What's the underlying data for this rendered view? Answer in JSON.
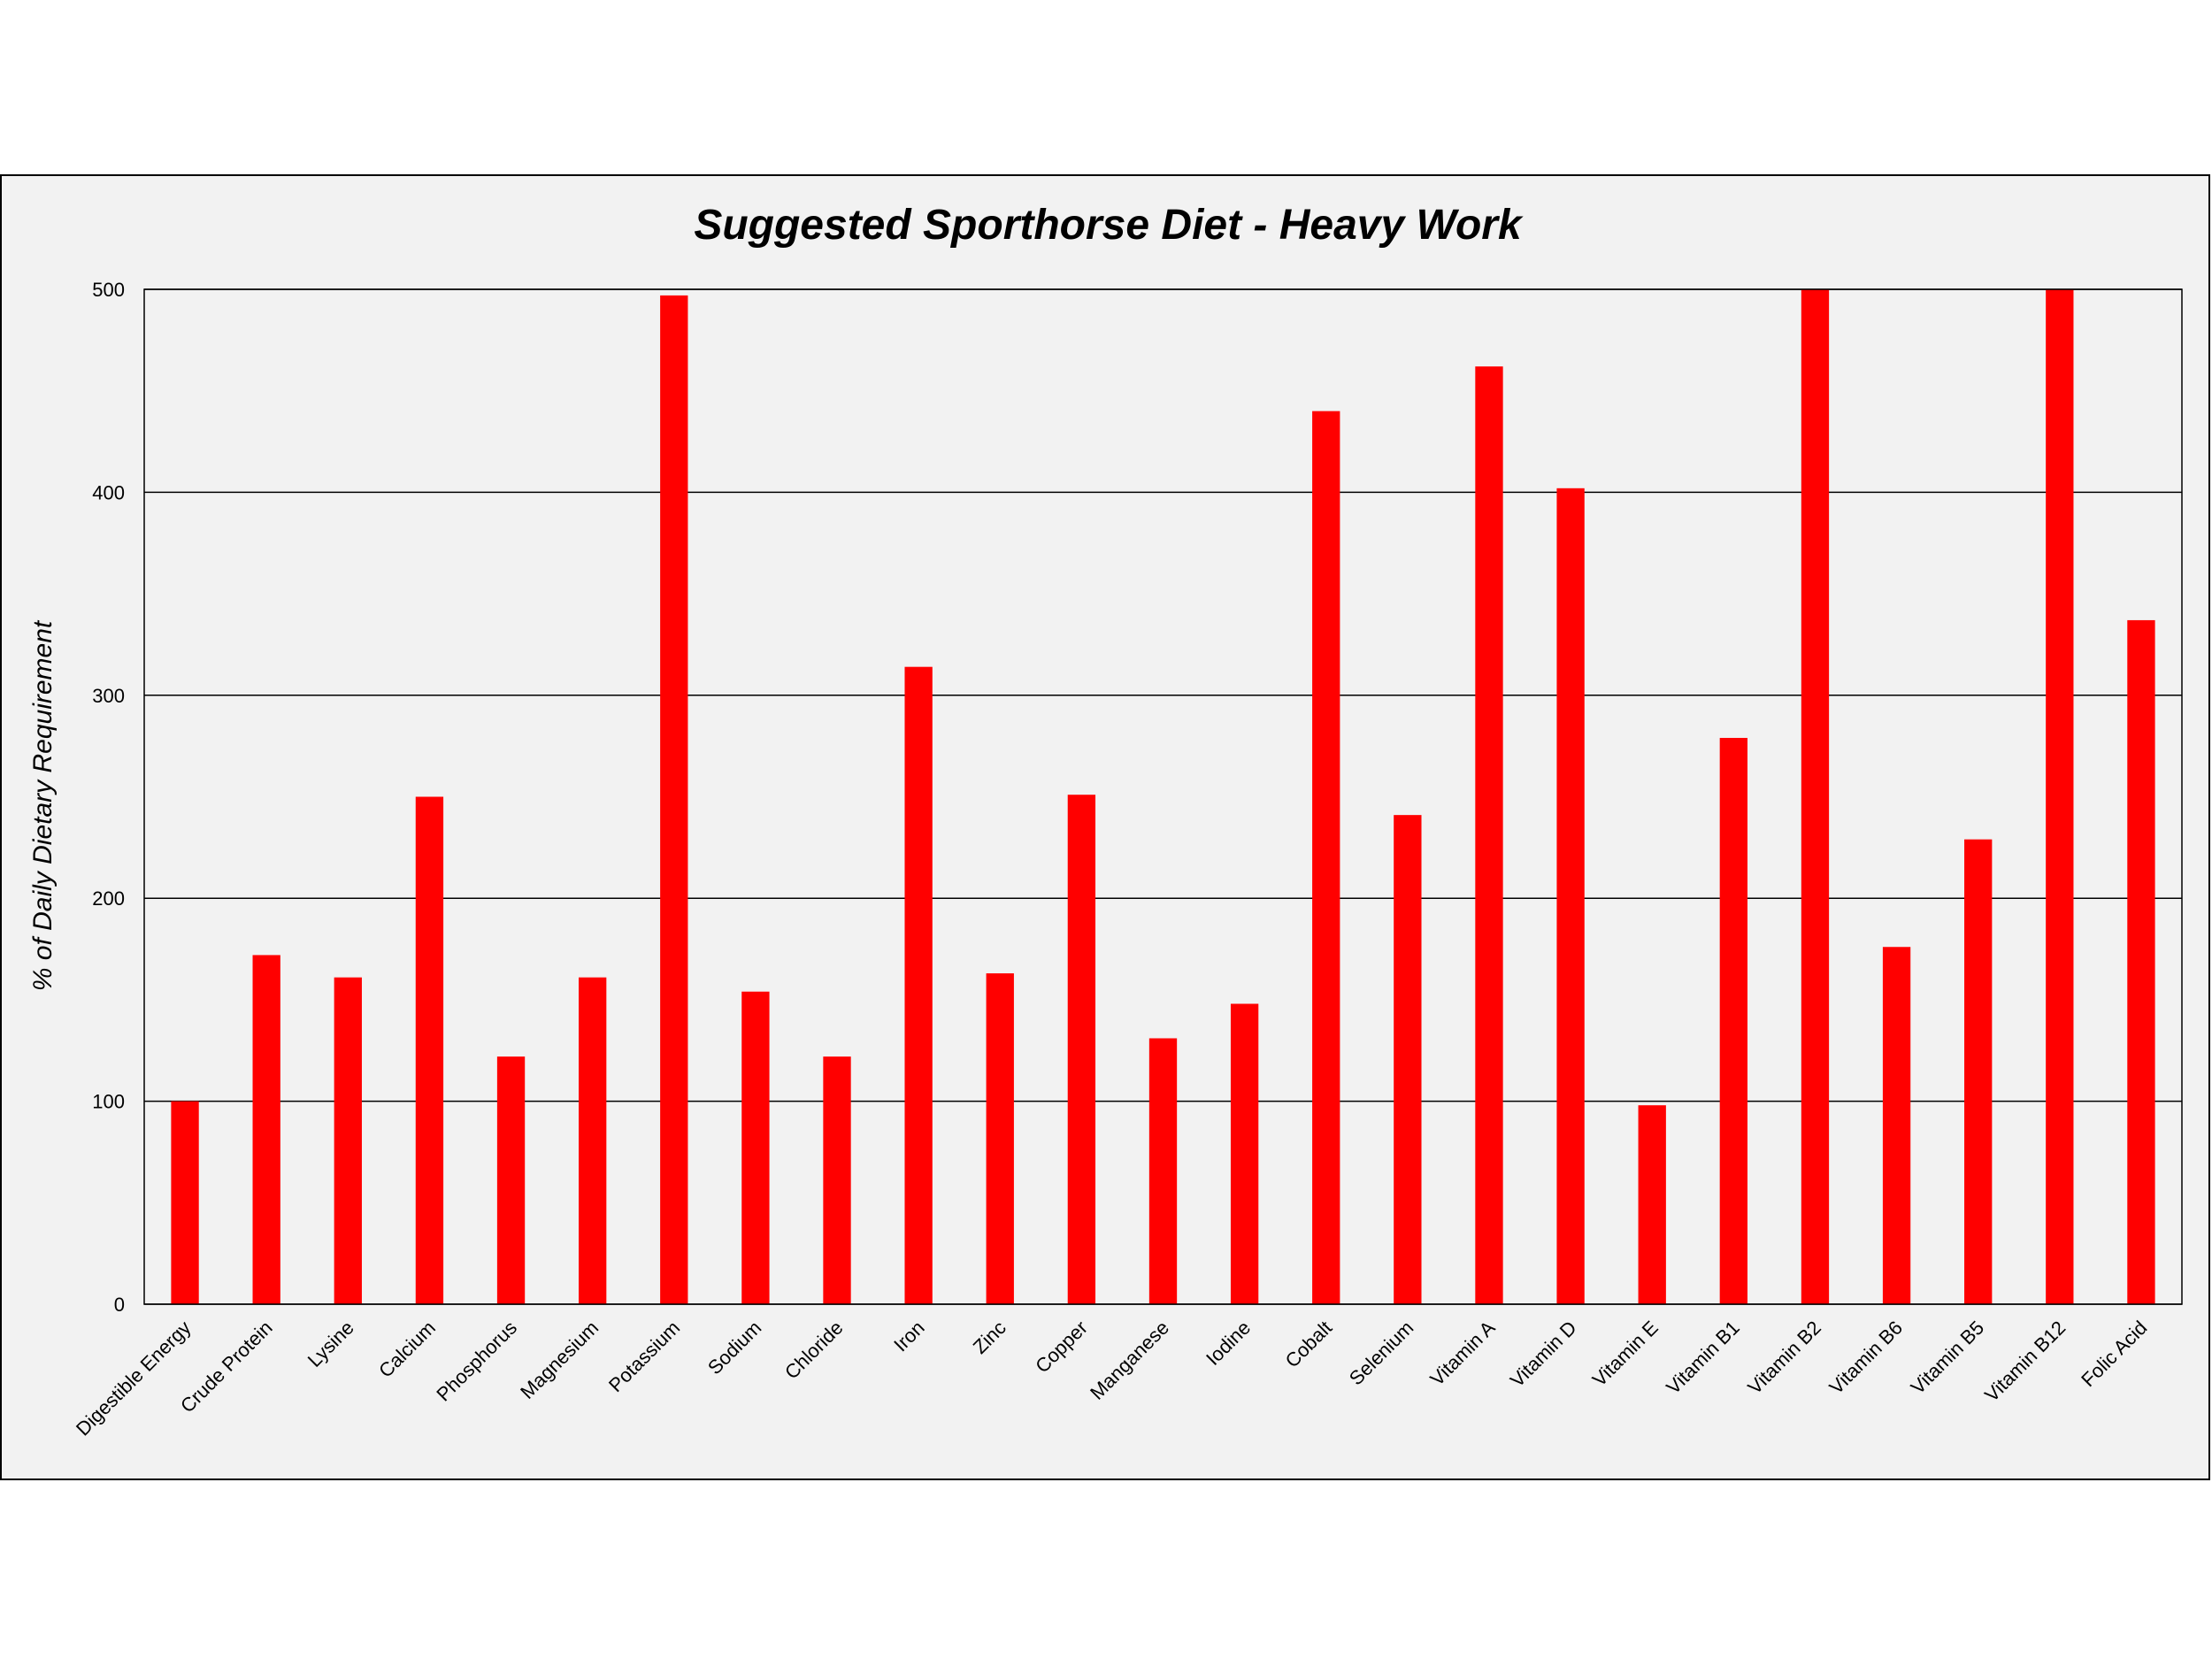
{
  "chart_data": {
    "type": "bar",
    "title": "Suggested Sporthorse Diet - Heavy Work",
    "xlabel": "",
    "ylabel": "% of Daily Dietary Requirement",
    "ylim": [
      0,
      500
    ],
    "yticks": [
      0,
      100,
      200,
      300,
      400,
      500
    ],
    "grid": true,
    "legend": "none",
    "bar_color": "#ff0000",
    "categories": [
      "Digestible Energy",
      "Crude Protein",
      "Lysine",
      "Calcium",
      "Phosphorus",
      "Magnesium",
      "Potassium",
      "Sodium",
      "Chloride",
      "Iron",
      "Zinc",
      "Copper",
      "Manganese",
      "Iodine",
      "Cobalt",
      "Selenium",
      "Vitamin A",
      "Vitamin D",
      "Vitamin E",
      "Vitamin B1",
      "Vitamin B2",
      "Vitamin B6",
      "Vitamin B5",
      "Vitamin B12",
      "Folic Acid"
    ],
    "values": [
      100,
      172,
      161,
      250,
      122,
      161,
      497,
      154,
      122,
      314,
      163,
      251,
      131,
      148,
      440,
      241,
      462,
      402,
      98,
      279,
      500,
      176,
      229,
      500,
      337
    ]
  }
}
